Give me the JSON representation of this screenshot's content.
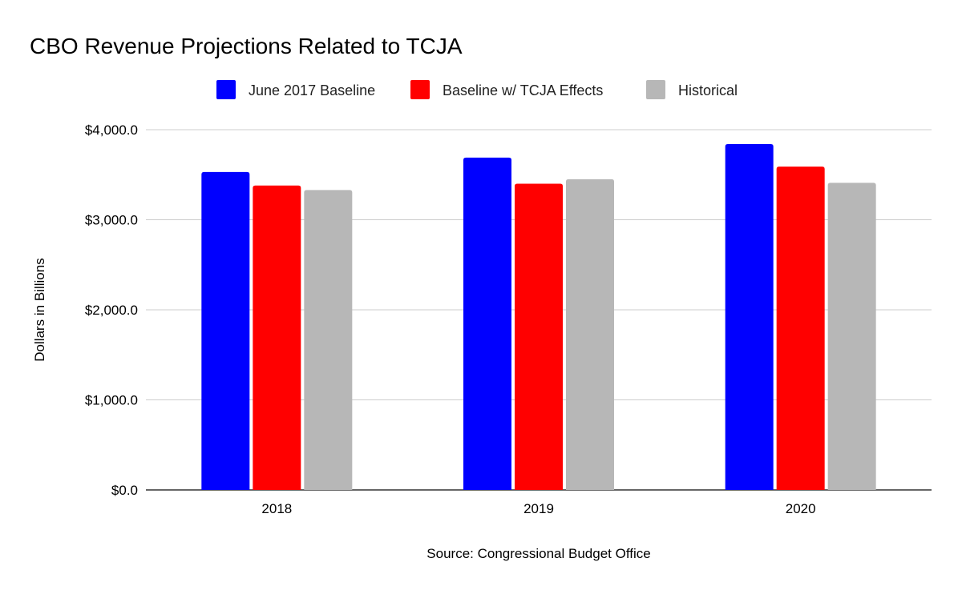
{
  "chart_data": {
    "type": "bar",
    "title": "CBO Revenue Projections Related to TCJA",
    "xlabel": "Source: Congressional Budget Office",
    "ylabel": "Dollars in Billions",
    "categories": [
      "2018",
      "2019",
      "2020"
    ],
    "series": [
      {
        "name": "June 2017 Baseline",
        "color": "#0000ff",
        "values": [
          3530,
          3690,
          3840
        ]
      },
      {
        "name": "Baseline w/ TCJA Effects",
        "color": "#ff0000",
        "values": [
          3380,
          3400,
          3590
        ]
      },
      {
        "name": "Historical",
        "color": "#b7b7b7",
        "values": [
          3330,
          3450,
          3410
        ]
      }
    ],
    "ylim": [
      0,
      4000
    ],
    "yticks": [
      0,
      1000,
      2000,
      3000,
      4000
    ],
    "ytick_labels": [
      "$0.0",
      "$1,000.0",
      "$2,000.0",
      "$3,000.0",
      "$4,000.0"
    ],
    "grid": true,
    "legend": "top"
  }
}
